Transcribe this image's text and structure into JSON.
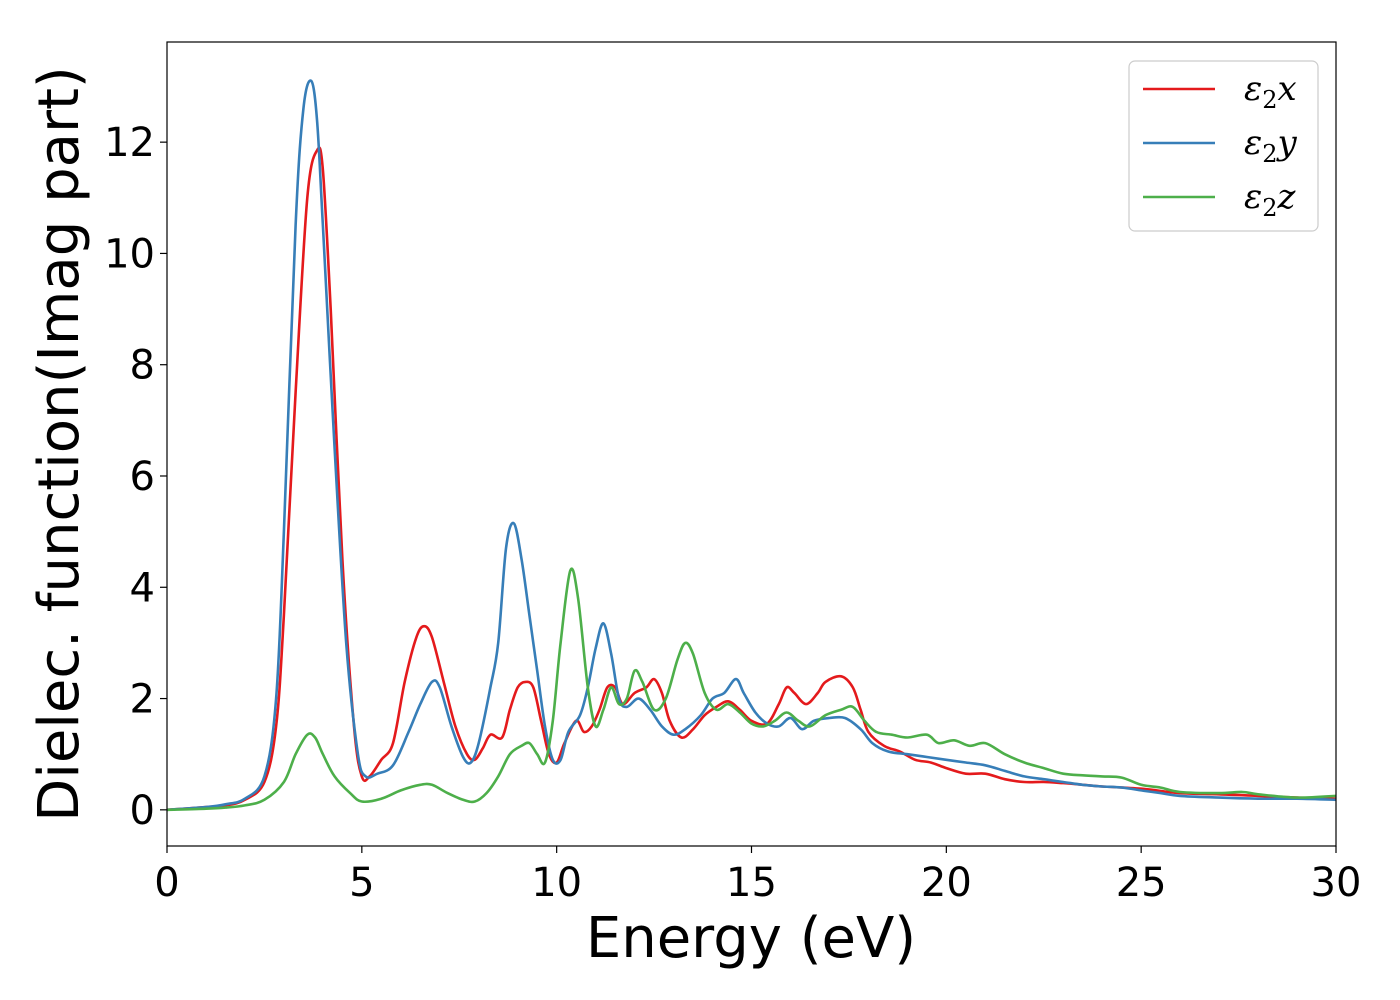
{
  "chart_data": {
    "type": "line",
    "xlabel": "Energy (eV)",
    "ylabel": "Dielec. function(Imag part)",
    "xlim": [
      0,
      30
    ],
    "ylim": [
      -0.65,
      13.8
    ],
    "xticks": [
      0,
      5,
      10,
      15,
      20,
      25,
      30
    ],
    "yticks": [
      0,
      2,
      4,
      6,
      8,
      10,
      12
    ],
    "legend_position": "top-right",
    "grid": false,
    "series": [
      {
        "name": "ε₂x",
        "legend_base": "ε",
        "legend_sub": "2",
        "legend_tail": "x",
        "color": "#e41a1c",
        "points": [
          [
            0,
            0
          ],
          [
            1,
            0.05
          ],
          [
            1.5,
            0.08
          ],
          [
            2,
            0.18
          ],
          [
            2.5,
            0.5
          ],
          [
            2.8,
            1.5
          ],
          [
            3.0,
            3.5
          ],
          [
            3.3,
            7.5
          ],
          [
            3.6,
            11.0
          ],
          [
            3.85,
            11.85
          ],
          [
            4.0,
            11.5
          ],
          [
            4.2,
            9.0
          ],
          [
            4.5,
            4.5
          ],
          [
            4.8,
            1.5
          ],
          [
            5.0,
            0.6
          ],
          [
            5.2,
            0.6
          ],
          [
            5.5,
            0.9
          ],
          [
            5.8,
            1.2
          ],
          [
            6.1,
            2.3
          ],
          [
            6.4,
            3.1
          ],
          [
            6.6,
            3.3
          ],
          [
            6.8,
            3.1
          ],
          [
            7.1,
            2.3
          ],
          [
            7.4,
            1.5
          ],
          [
            7.7,
            1.0
          ],
          [
            7.9,
            0.9
          ],
          [
            8.1,
            1.1
          ],
          [
            8.3,
            1.35
          ],
          [
            8.6,
            1.3
          ],
          [
            8.8,
            1.8
          ],
          [
            9.0,
            2.2
          ],
          [
            9.2,
            2.3
          ],
          [
            9.4,
            2.2
          ],
          [
            9.6,
            1.6
          ],
          [
            9.8,
            1.0
          ],
          [
            10.0,
            0.85
          ],
          [
            10.2,
            1.2
          ],
          [
            10.5,
            1.6
          ],
          [
            10.7,
            1.4
          ],
          [
            10.9,
            1.5
          ],
          [
            11.1,
            1.8
          ],
          [
            11.3,
            2.2
          ],
          [
            11.5,
            2.2
          ],
          [
            11.7,
            1.9
          ],
          [
            12.0,
            2.1
          ],
          [
            12.3,
            2.2
          ],
          [
            12.5,
            2.35
          ],
          [
            12.7,
            2.1
          ],
          [
            12.9,
            1.6
          ],
          [
            13.2,
            1.3
          ],
          [
            13.5,
            1.45
          ],
          [
            13.8,
            1.7
          ],
          [
            14.1,
            1.85
          ],
          [
            14.4,
            1.95
          ],
          [
            14.7,
            1.8
          ],
          [
            15.0,
            1.6
          ],
          [
            15.4,
            1.55
          ],
          [
            15.7,
            1.9
          ],
          [
            15.9,
            2.2
          ],
          [
            16.1,
            2.1
          ],
          [
            16.4,
            1.9
          ],
          [
            16.7,
            2.1
          ],
          [
            16.9,
            2.3
          ],
          [
            17.3,
            2.4
          ],
          [
            17.6,
            2.2
          ],
          [
            17.8,
            1.8
          ],
          [
            18.0,
            1.4
          ],
          [
            18.4,
            1.15
          ],
          [
            18.8,
            1.05
          ],
          [
            19.2,
            0.9
          ],
          [
            19.6,
            0.85
          ],
          [
            20.0,
            0.75
          ],
          [
            20.5,
            0.65
          ],
          [
            21.0,
            0.65
          ],
          [
            21.5,
            0.55
          ],
          [
            22.0,
            0.5
          ],
          [
            22.5,
            0.5
          ],
          [
            23.0,
            0.48
          ],
          [
            23.5,
            0.45
          ],
          [
            24.0,
            0.42
          ],
          [
            25.0,
            0.38
          ],
          [
            26.0,
            0.3
          ],
          [
            27.0,
            0.28
          ],
          [
            28.0,
            0.25
          ],
          [
            29.0,
            0.22
          ],
          [
            30.0,
            0.2
          ]
        ]
      },
      {
        "name": "ε₂y",
        "legend_base": "ε",
        "legend_sub": "2",
        "legend_tail": "y",
        "color": "#377eb8",
        "points": [
          [
            0,
            0
          ],
          [
            1,
            0.05
          ],
          [
            1.5,
            0.1
          ],
          [
            2,
            0.2
          ],
          [
            2.5,
            0.6
          ],
          [
            2.8,
            2.0
          ],
          [
            3.0,
            5.0
          ],
          [
            3.3,
            10.5
          ],
          [
            3.5,
            12.6
          ],
          [
            3.7,
            13.1
          ],
          [
            3.85,
            12.4
          ],
          [
            4.0,
            10.5
          ],
          [
            4.3,
            6.5
          ],
          [
            4.6,
            3.0
          ],
          [
            4.9,
            1.0
          ],
          [
            5.1,
            0.6
          ],
          [
            5.4,
            0.65
          ],
          [
            5.8,
            0.8
          ],
          [
            6.2,
            1.4
          ],
          [
            6.5,
            1.9
          ],
          [
            6.8,
            2.3
          ],
          [
            7.0,
            2.2
          ],
          [
            7.3,
            1.5
          ],
          [
            7.6,
            0.95
          ],
          [
            7.8,
            0.85
          ],
          [
            8.0,
            1.2
          ],
          [
            8.3,
            2.2
          ],
          [
            8.5,
            3.0
          ],
          [
            8.7,
            4.7
          ],
          [
            8.9,
            5.15
          ],
          [
            9.1,
            4.5
          ],
          [
            9.3,
            3.5
          ],
          [
            9.5,
            2.5
          ],
          [
            9.7,
            1.5
          ],
          [
            9.9,
            0.9
          ],
          [
            10.1,
            0.9
          ],
          [
            10.3,
            1.4
          ],
          [
            10.6,
            1.7
          ],
          [
            10.8,
            2.2
          ],
          [
            11.0,
            2.9
          ],
          [
            11.2,
            3.35
          ],
          [
            11.4,
            2.8
          ],
          [
            11.6,
            2.0
          ],
          [
            11.8,
            1.85
          ],
          [
            12.1,
            2.0
          ],
          [
            12.4,
            1.8
          ],
          [
            12.7,
            1.5
          ],
          [
            13.0,
            1.35
          ],
          [
            13.3,
            1.45
          ],
          [
            13.7,
            1.7
          ],
          [
            14.0,
            2.0
          ],
          [
            14.3,
            2.1
          ],
          [
            14.6,
            2.35
          ],
          [
            14.8,
            2.1
          ],
          [
            15.1,
            1.75
          ],
          [
            15.4,
            1.55
          ],
          [
            15.7,
            1.5
          ],
          [
            16.0,
            1.65
          ],
          [
            16.3,
            1.45
          ],
          [
            16.6,
            1.6
          ],
          [
            17.0,
            1.65
          ],
          [
            17.4,
            1.65
          ],
          [
            17.8,
            1.45
          ],
          [
            18.1,
            1.2
          ],
          [
            18.5,
            1.05
          ],
          [
            19.0,
            1.0
          ],
          [
            19.5,
            0.95
          ],
          [
            20.0,
            0.9
          ],
          [
            20.5,
            0.85
          ],
          [
            21.0,
            0.8
          ],
          [
            21.5,
            0.7
          ],
          [
            22.0,
            0.6
          ],
          [
            22.5,
            0.55
          ],
          [
            23.0,
            0.5
          ],
          [
            23.5,
            0.45
          ],
          [
            24.0,
            0.42
          ],
          [
            24.5,
            0.4
          ],
          [
            25.0,
            0.35
          ],
          [
            25.5,
            0.3
          ],
          [
            26.0,
            0.25
          ],
          [
            27.0,
            0.22
          ],
          [
            28.0,
            0.2
          ],
          [
            29.0,
            0.2
          ],
          [
            30.0,
            0.18
          ]
        ]
      },
      {
        "name": "ε₂z",
        "legend_base": "ε",
        "legend_sub": "2",
        "legend_tail": "z",
        "color": "#4daf4a",
        "points": [
          [
            0,
            0
          ],
          [
            1,
            0.02
          ],
          [
            1.5,
            0.04
          ],
          [
            2,
            0.08
          ],
          [
            2.5,
            0.18
          ],
          [
            3.0,
            0.5
          ],
          [
            3.3,
            1.0
          ],
          [
            3.6,
            1.35
          ],
          [
            3.8,
            1.3
          ],
          [
            4.0,
            1.0
          ],
          [
            4.3,
            0.6
          ],
          [
            4.7,
            0.3
          ],
          [
            5.0,
            0.15
          ],
          [
            5.5,
            0.2
          ],
          [
            6.0,
            0.35
          ],
          [
            6.5,
            0.45
          ],
          [
            6.8,
            0.45
          ],
          [
            7.2,
            0.3
          ],
          [
            7.6,
            0.18
          ],
          [
            7.9,
            0.15
          ],
          [
            8.2,
            0.3
          ],
          [
            8.5,
            0.6
          ],
          [
            8.8,
            1.0
          ],
          [
            9.1,
            1.15
          ],
          [
            9.3,
            1.2
          ],
          [
            9.5,
            1.0
          ],
          [
            9.7,
            0.85
          ],
          [
            9.9,
            1.6
          ],
          [
            10.1,
            3.0
          ],
          [
            10.35,
            4.3
          ],
          [
            10.55,
            3.8
          ],
          [
            10.8,
            2.2
          ],
          [
            11.0,
            1.5
          ],
          [
            11.2,
            1.8
          ],
          [
            11.4,
            2.2
          ],
          [
            11.6,
            1.9
          ],
          [
            11.8,
            2.0
          ],
          [
            12.0,
            2.5
          ],
          [
            12.2,
            2.3
          ],
          [
            12.5,
            1.8
          ],
          [
            12.8,
            2.0
          ],
          [
            13.1,
            2.7
          ],
          [
            13.3,
            3.0
          ],
          [
            13.5,
            2.8
          ],
          [
            13.8,
            2.1
          ],
          [
            14.1,
            1.8
          ],
          [
            14.4,
            1.9
          ],
          [
            14.7,
            1.75
          ],
          [
            15.0,
            1.55
          ],
          [
            15.3,
            1.5
          ],
          [
            15.6,
            1.6
          ],
          [
            15.9,
            1.75
          ],
          [
            16.2,
            1.6
          ],
          [
            16.5,
            1.5
          ],
          [
            16.9,
            1.7
          ],
          [
            17.3,
            1.8
          ],
          [
            17.6,
            1.85
          ],
          [
            17.9,
            1.6
          ],
          [
            18.2,
            1.4
          ],
          [
            18.6,
            1.35
          ],
          [
            19.0,
            1.3
          ],
          [
            19.5,
            1.35
          ],
          [
            19.8,
            1.2
          ],
          [
            20.2,
            1.25
          ],
          [
            20.6,
            1.15
          ],
          [
            21.0,
            1.2
          ],
          [
            21.5,
            1.0
          ],
          [
            22.0,
            0.85
          ],
          [
            22.5,
            0.75
          ],
          [
            23.0,
            0.65
          ],
          [
            23.5,
            0.62
          ],
          [
            24.0,
            0.6
          ],
          [
            24.5,
            0.58
          ],
          [
            25.0,
            0.45
          ],
          [
            25.5,
            0.4
          ],
          [
            26.0,
            0.32
          ],
          [
            27.0,
            0.3
          ],
          [
            27.6,
            0.32
          ],
          [
            28.0,
            0.28
          ],
          [
            29.0,
            0.22
          ],
          [
            30.0,
            0.25
          ]
        ]
      }
    ]
  }
}
